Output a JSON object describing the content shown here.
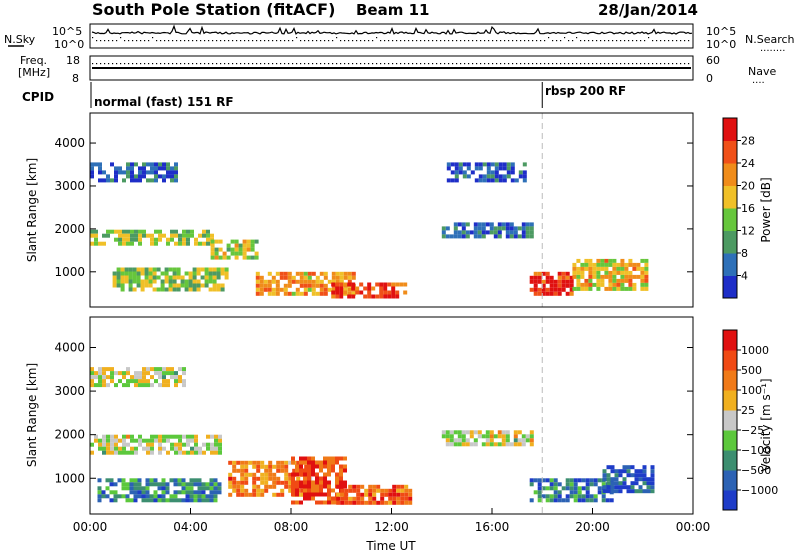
{
  "header": {
    "title": "South Pole Station (fitACF)",
    "beam": "Beam 11",
    "date": "28/Jan/2014"
  },
  "top_panel": {
    "left_label": "N.Sky",
    "right_label": "N.Search",
    "ticks_left": [
      "10^5",
      "10^0"
    ],
    "ticks_right": [
      "10^5",
      "10^0"
    ]
  },
  "freq_panel": {
    "left_label_1": "Freq.",
    "left_label_2": "[MHz]",
    "left_ticks": [
      "18",
      "8"
    ],
    "right_label": "Nave",
    "right_ticks": [
      "60",
      "0"
    ]
  },
  "cpid": {
    "label": "CPID",
    "mode1": "normal (fast) 151 RF",
    "mode2": "rbsp 200 RF",
    "mode2_start_hour": 18.0
  },
  "chart_data": [
    {
      "type": "heatmap",
      "quantity": "Power",
      "ylabel": "Slant Range [km]",
      "y_ticks": [
        1000,
        2000,
        3000,
        4000
      ],
      "ylim": [
        180,
        4700
      ],
      "colorbar_label": "Power [dB]",
      "colorbar_ticks": [
        "4",
        "8",
        "12",
        "16",
        "20",
        "24",
        "28"
      ],
      "colorbar_colors": [
        "#1e2ec8",
        "#2e70b8",
        "#4c9a62",
        "#66c63c",
        "#f0c028",
        "#f08c1a",
        "#f05018",
        "#e01010"
      ],
      "colorbar_range": [
        0,
        32
      ],
      "echo_regions": [
        {
          "hour_start": 0.0,
          "hour_end": 4.8,
          "range_start": 1620,
          "range_end": 1980,
          "level": 0.45
        },
        {
          "hour_start": 4.8,
          "hour_end": 6.6,
          "range_start": 1350,
          "range_end": 1750,
          "level": 0.5
        },
        {
          "hour_start": 0.9,
          "hour_end": 5.5,
          "range_start": 600,
          "range_end": 1100,
          "level": 0.45
        },
        {
          "hour_start": 0.0,
          "hour_end": 3.5,
          "range_start": 3150,
          "range_end": 3550,
          "level": 0.15
        },
        {
          "hour_start": 6.6,
          "hour_end": 10.5,
          "range_start": 500,
          "range_end": 1000,
          "level": 0.65
        },
        {
          "hour_start": 9.6,
          "hour_end": 12.6,
          "range_start": 400,
          "range_end": 750,
          "level": 0.85
        },
        {
          "hour_start": 14.2,
          "hour_end": 17.3,
          "range_start": 3150,
          "range_end": 3550,
          "level": 0.12
        },
        {
          "hour_start": 14.0,
          "hour_end": 17.6,
          "range_start": 1850,
          "range_end": 2150,
          "level": 0.2
        },
        {
          "hour_start": 17.5,
          "hour_end": 19.2,
          "range_start": 500,
          "range_end": 1000,
          "level": 0.9
        },
        {
          "hour_start": 19.2,
          "hour_end": 22.2,
          "range_start": 600,
          "range_end": 1300,
          "level": 0.6
        }
      ]
    },
    {
      "type": "heatmap",
      "quantity": "Velocity",
      "ylabel": "Slant Range [km]",
      "y_ticks": [
        1000,
        2000,
        3000,
        4000
      ],
      "ylim": [
        180,
        4700
      ],
      "xlabel": "Time UT",
      "x_ticks": [
        "00:00",
        "04:00",
        "08:00",
        "12:00",
        "16:00",
        "20:00",
        "00:00"
      ],
      "x_range_hours": [
        0,
        24
      ],
      "colorbar_label": "Velocity [m s⁻¹]",
      "colorbar_ticks": [
        "1000",
        "500",
        "100",
        "25",
        "−25",
        "−100",
        "−500",
        "−1000"
      ],
      "colorbar_colors": [
        "#1e3cc8",
        "#2c62b4",
        "#3c8e70",
        "#5cc83c",
        "#c8c8c8",
        "#f0b020",
        "#f07a18",
        "#f04a14",
        "#e01010"
      ],
      "echo_regions": [
        {
          "hour_start": 0.0,
          "hour_end": 5.2,
          "range_start": 1600,
          "range_end": 2000,
          "level": 0.5
        },
        {
          "hour_start": 0.0,
          "hour_end": 3.8,
          "range_start": 3150,
          "range_end": 3550,
          "level": 0.5
        },
        {
          "hour_start": 0.3,
          "hour_end": 5.2,
          "range_start": 500,
          "range_end": 1000,
          "level": 0.25
        },
        {
          "hour_start": 5.5,
          "hour_end": 8.8,
          "range_start": 600,
          "range_end": 1400,
          "level": 0.72
        },
        {
          "hour_start": 8.0,
          "hour_end": 10.2,
          "range_start": 400,
          "range_end": 1500,
          "level": 0.85
        },
        {
          "hour_start": 9.8,
          "hour_end": 12.7,
          "range_start": 400,
          "range_end": 850,
          "level": 0.8
        },
        {
          "hour_start": 14.0,
          "hour_end": 17.6,
          "range_start": 1800,
          "range_end": 2100,
          "level": 0.5
        },
        {
          "hour_start": 17.5,
          "hour_end": 20.8,
          "range_start": 500,
          "range_end": 1000,
          "level": 0.2
        },
        {
          "hour_start": 20.4,
          "hour_end": 22.4,
          "range_start": 700,
          "range_end": 1300,
          "level": 0.12
        }
      ]
    }
  ]
}
